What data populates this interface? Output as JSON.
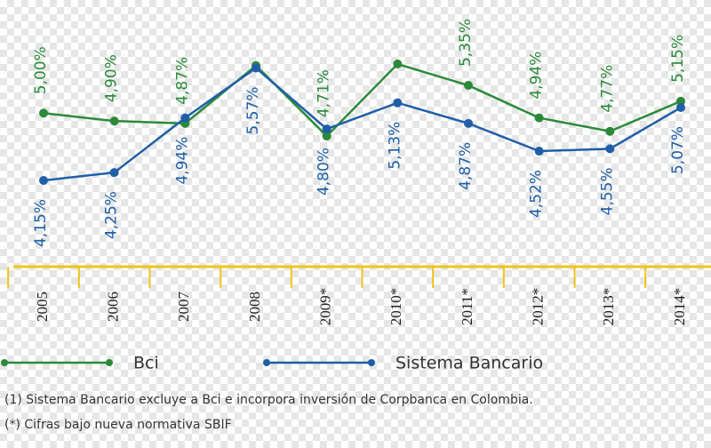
{
  "chart_data": {
    "type": "line",
    "categories": [
      "2005",
      "2006",
      "2007",
      "2008",
      "2009*",
      "2010*",
      "2011*",
      "2012*",
      "2013*",
      "2014*"
    ],
    "series": [
      {
        "name": "Bci",
        "color": "#2a8a3a",
        "values": [
          5.0,
          4.9,
          4.87,
          5.6,
          4.71,
          5.62,
          5.35,
          4.94,
          4.77,
          5.15
        ],
        "value_labels": [
          "5,00%",
          "4,90%",
          "4,87%",
          null,
          "4,71%",
          null,
          "5,35%",
          "4,94%",
          "4,77%",
          "5,15%"
        ]
      },
      {
        "name": "Sistema Bancario",
        "color": "#1f5fa8",
        "values": [
          4.15,
          4.25,
          4.94,
          5.57,
          4.8,
          5.13,
          4.87,
          4.52,
          4.55,
          5.07
        ],
        "value_labels": [
          "4,15%",
          "4,25%",
          "4,94%",
          "5,57%",
          "4,80%",
          "5,13%",
          "4,87%",
          "4,52%",
          "4,55%",
          "5,07%"
        ]
      }
    ],
    "axis_color": "#f0c419",
    "notes": [
      "(1) Sistema Bancario excluye a Bci e incorpora inversión de Corpbanca en Colombia.",
      "(*) Cifras bajo nueva normativa SBIF"
    ]
  }
}
